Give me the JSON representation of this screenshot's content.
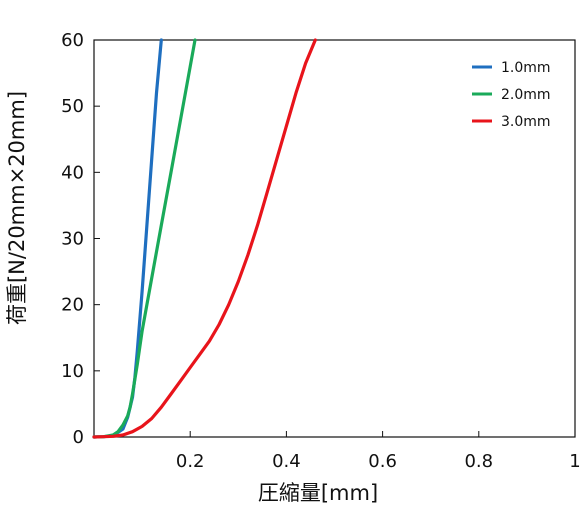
{
  "chart_data": {
    "type": "line",
    "title": "",
    "xlabel": "圧縮量[mm]",
    "ylabel": "荷重[N/20mm×20mm]",
    "xlim": [
      0,
      1
    ],
    "ylim": [
      0,
      60
    ],
    "xticks": [
      0.2,
      0.4,
      0.6,
      0.8,
      1
    ],
    "xtick_labels": [
      "0.2",
      "0.4",
      "0.6",
      "0.8",
      "1"
    ],
    "yticks": [
      0,
      10,
      20,
      30,
      40,
      50,
      60
    ],
    "ytick_labels": [
      "0",
      "10",
      "20",
      "30",
      "40",
      "50",
      "60"
    ],
    "grid": false,
    "legend_position": "top-right",
    "series": [
      {
        "name": "1.0mm",
        "color": "#1f6fc0",
        "x": [
          0.0,
          0.02,
          0.04,
          0.06,
          0.07,
          0.08,
          0.085,
          0.09,
          0.1,
          0.11,
          0.12,
          0.13,
          0.14
        ],
        "y": [
          0,
          0.05,
          0.2,
          1.2,
          3,
          6,
          9,
          13,
          22,
          32,
          42,
          52,
          60
        ]
      },
      {
        "name": "2.0mm",
        "color": "#1aaa5a",
        "x": [
          0.0,
          0.02,
          0.04,
          0.05,
          0.06,
          0.07,
          0.075,
          0.08,
          0.09,
          0.1,
          0.12,
          0.14,
          0.16,
          0.18,
          0.2,
          0.21
        ],
        "y": [
          0,
          0.05,
          0.3,
          0.8,
          1.8,
          3.2,
          4.5,
          6.5,
          11,
          16,
          24,
          32,
          40,
          48,
          56,
          60
        ]
      },
      {
        "name": "3.0mm",
        "color": "#e8141b",
        "x": [
          0.0,
          0.02,
          0.04,
          0.06,
          0.08,
          0.1,
          0.12,
          0.14,
          0.16,
          0.18,
          0.2,
          0.22,
          0.24,
          0.26,
          0.28,
          0.3,
          0.32,
          0.34,
          0.36,
          0.38,
          0.4,
          0.42,
          0.44,
          0.46
        ],
        "y": [
          0,
          0.05,
          0.1,
          0.3,
          0.8,
          1.6,
          2.8,
          4.5,
          6.5,
          8.5,
          10.5,
          12.5,
          14.5,
          17,
          20,
          23.5,
          27.5,
          32,
          37,
          42,
          47,
          52,
          56.5,
          60
        ]
      }
    ]
  }
}
